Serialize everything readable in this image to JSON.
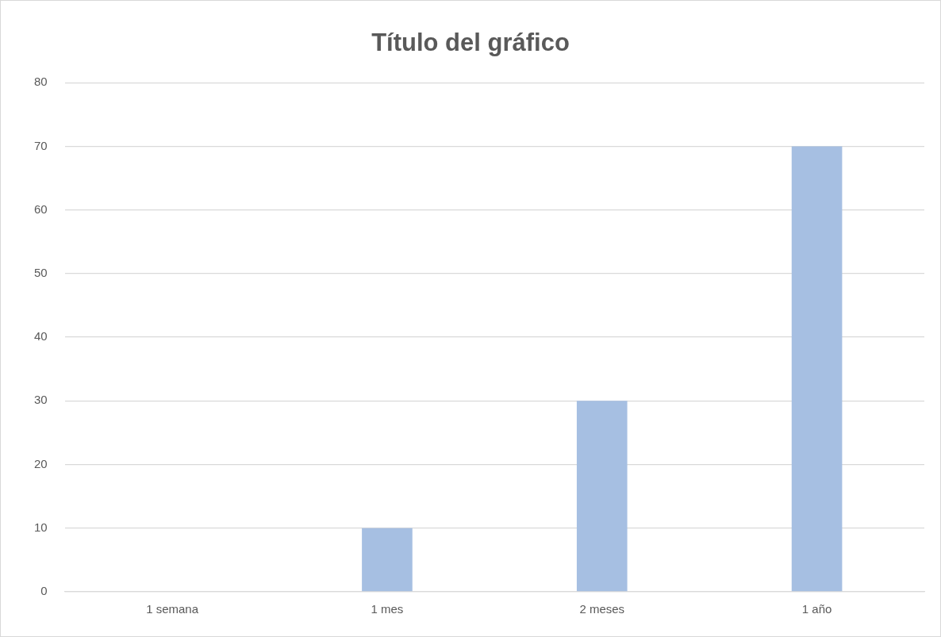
{
  "chart_data": {
    "type": "bar",
    "title": "Título del gráfico",
    "categories": [
      "1 semana",
      "1 mes",
      "2 meses",
      "1 año"
    ],
    "values": [
      0,
      10,
      30,
      70
    ],
    "color": "#a6bfe2",
    "ylim": [
      0,
      80
    ],
    "yticks": [
      0,
      10,
      20,
      30,
      40,
      50,
      60,
      70,
      80
    ],
    "grid": "y",
    "legend": false
  }
}
